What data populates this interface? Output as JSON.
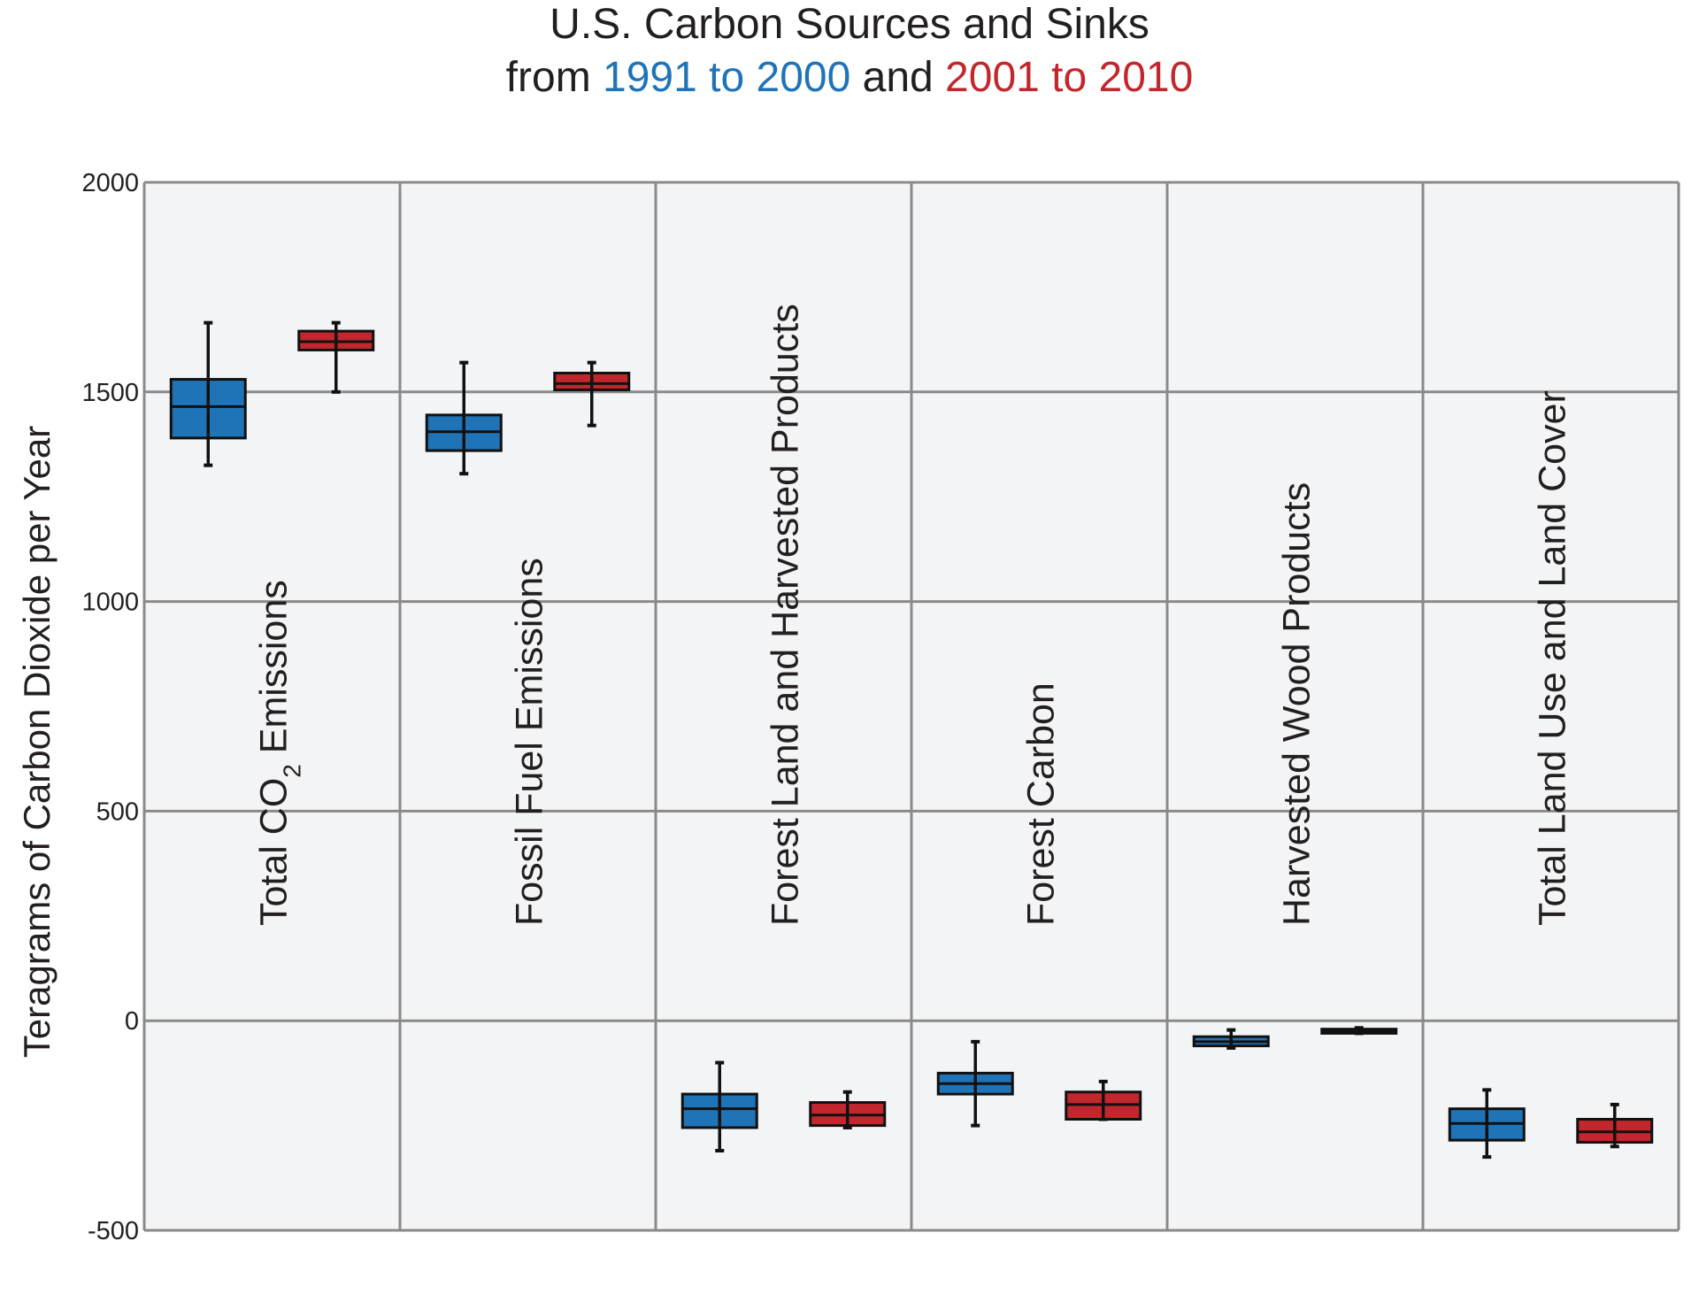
{
  "chart_data": {
    "type": "box",
    "title": {
      "line1": "U.S. Carbon Sources and Sinks",
      "line2_prefix": "from ",
      "line2_period1": "1991 to 2000",
      "line2_mid": " and ",
      "line2_period2": "2001 to 2010"
    },
    "ylabel": "Teragrams of Carbon Dioxide per Year",
    "ylim": [
      -500,
      2000
    ],
    "yticks": [
      2000,
      1500,
      1000,
      500,
      0,
      -500
    ],
    "ytick_labels": [
      "2000",
      "1500",
      "1000",
      "500",
      "0",
      "-500"
    ],
    "grid": true,
    "colors": {
      "period1": "#1f73b7",
      "period2": "#c1272d",
      "panel_bg": "#f3f4f6",
      "grid": "#8a8a8a",
      "text": "#231f20"
    },
    "series_names": [
      "1991 to 2000",
      "2001 to 2010"
    ],
    "categories": [
      {
        "label": "Total CO",
        "sub": "2",
        "label_after": " Emissions",
        "boxes": [
          {
            "period": "1991 to 2000",
            "min": 1325,
            "q1": 1390,
            "median": 1465,
            "q3": 1530,
            "max": 1665
          },
          {
            "period": "2001 to 2010",
            "min": 1500,
            "q1": 1600,
            "median": 1620,
            "q3": 1645,
            "max": 1665
          }
        ]
      },
      {
        "label": "Fossil Fuel Emissions",
        "boxes": [
          {
            "period": "1991 to 2000",
            "min": 1305,
            "q1": 1360,
            "median": 1405,
            "q3": 1445,
            "max": 1570
          },
          {
            "period": "2001 to 2010",
            "min": 1420,
            "q1": 1505,
            "median": 1520,
            "q3": 1545,
            "max": 1570
          }
        ]
      },
      {
        "label": "Forest Land and Harvested Products",
        "boxes": [
          {
            "period": "1991 to 2000",
            "min": -310,
            "q1": -255,
            "median": -210,
            "q3": -175,
            "max": -100
          },
          {
            "period": "2001 to 2010",
            "min": -255,
            "q1": -250,
            "median": -225,
            "q3": -195,
            "max": -170
          }
        ]
      },
      {
        "label": "Forest Carbon",
        "boxes": [
          {
            "period": "1991 to 2000",
            "min": -250,
            "q1": -175,
            "median": -150,
            "q3": -125,
            "max": -50
          },
          {
            "period": "2001 to 2010",
            "min": -235,
            "q1": -235,
            "median": -200,
            "q3": -170,
            "max": -145
          }
        ]
      },
      {
        "label": "Harvested Wood Products",
        "boxes": [
          {
            "period": "1991 to 2000",
            "min": -65,
            "q1": -60,
            "median": -50,
            "q3": -38,
            "max": -22
          },
          {
            "period": "2001 to 2010",
            "min": -30,
            "q1": -30,
            "median": -25,
            "q3": -20,
            "max": -17
          }
        ]
      },
      {
        "label": "Total Land Use and Land Cover",
        "boxes": [
          {
            "period": "1991 to 2000",
            "min": -325,
            "q1": -285,
            "median": -245,
            "q3": -210,
            "max": -165
          },
          {
            "period": "2001 to 2010",
            "min": -300,
            "q1": -290,
            "median": -265,
            "q3": -235,
            "max": -200
          }
        ]
      }
    ]
  }
}
